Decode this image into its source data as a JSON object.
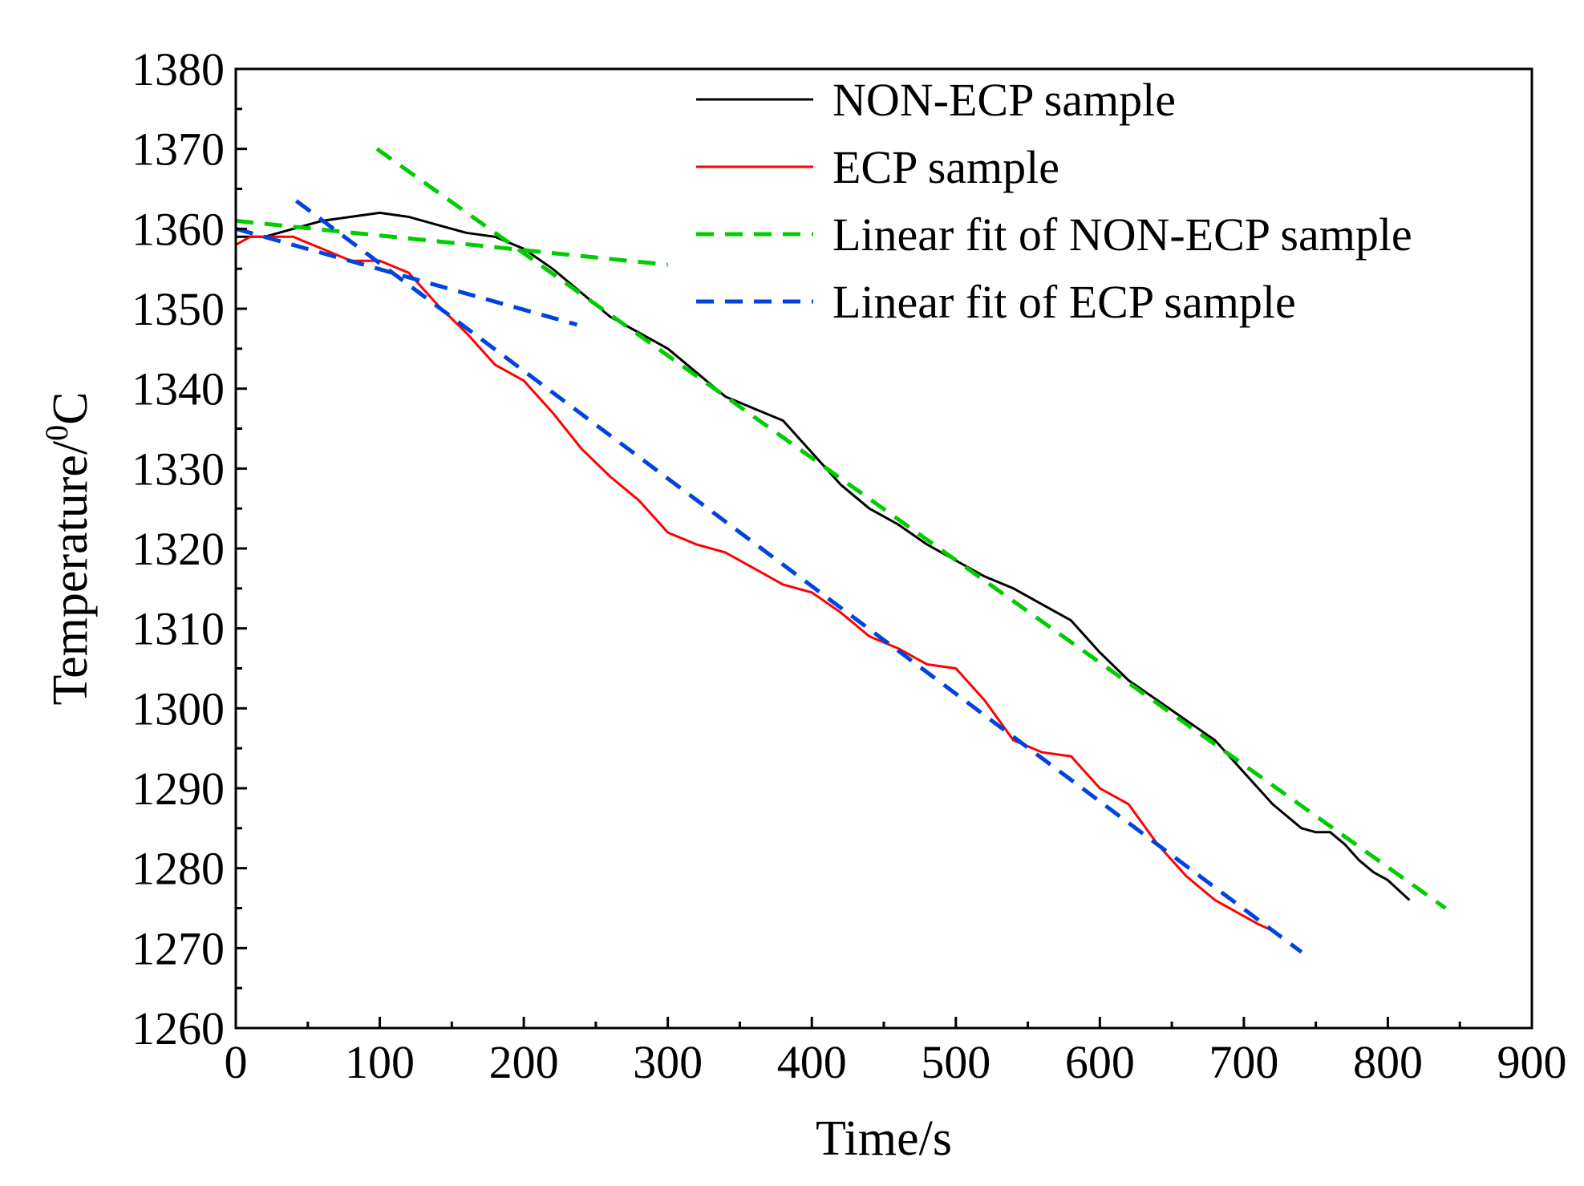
{
  "chart_data": {
    "type": "line",
    "title": "",
    "xlabel": "Time/s",
    "ylabel_main": "Temperature/",
    "ylabel_sup": "0",
    "ylabel_unit": "C",
    "xlim": [
      0,
      900
    ],
    "ylim": [
      1260,
      1380
    ],
    "xticks": [
      "0",
      "100",
      "200",
      "300",
      "400",
      "500",
      "600",
      "700",
      "800",
      "900"
    ],
    "yticks": [
      "1260",
      "1270",
      "1280",
      "1290",
      "1300",
      "1310",
      "1320",
      "1330",
      "1340",
      "1350",
      "1360",
      "1370",
      "1380"
    ],
    "grid": false,
    "legend_position": "top-right",
    "series": [
      {
        "name": "NON-ECP sample",
        "color": "#000000",
        "style": "solid",
        "x": [
          0,
          20,
          40,
          60,
          80,
          100,
          120,
          140,
          160,
          180,
          200,
          220,
          240,
          260,
          280,
          300,
          320,
          340,
          360,
          380,
          400,
          420,
          440,
          460,
          480,
          500,
          520,
          540,
          560,
          580,
          600,
          620,
          640,
          660,
          680,
          700,
          720,
          740,
          750,
          760,
          770,
          780,
          790,
          800,
          815
        ],
        "y": [
          1359,
          1359,
          1360,
          1361,
          1361.5,
          1362,
          1361.5,
          1360.5,
          1359.5,
          1359,
          1357.5,
          1355,
          1352,
          1349,
          1347,
          1345,
          1342,
          1339,
          1337.5,
          1336,
          1332,
          1328,
          1325,
          1323,
          1320.5,
          1318.5,
          1316.5,
          1315,
          1313,
          1311,
          1307,
          1303.5,
          1301,
          1298.5,
          1296,
          1292,
          1288,
          1285,
          1284.5,
          1284.5,
          1283,
          1281,
          1279.5,
          1278.5,
          1276
        ]
      },
      {
        "name": "ECP sample",
        "color": "#ff0000",
        "style": "solid",
        "x": [
          0,
          10,
          20,
          40,
          60,
          80,
          100,
          120,
          140,
          160,
          180,
          200,
          220,
          240,
          260,
          280,
          300,
          320,
          340,
          360,
          380,
          400,
          420,
          440,
          460,
          480,
          500,
          520,
          540,
          560,
          580,
          600,
          620,
          640,
          660,
          680,
          700,
          710,
          722
        ],
        "y": [
          1358,
          1359,
          1359,
          1359,
          1357.5,
          1356,
          1356,
          1354.5,
          1350.5,
          1347,
          1343,
          1341,
          1337,
          1332.5,
          1329,
          1326,
          1322,
          1320.5,
          1319.5,
          1317.5,
          1315.5,
          1314.5,
          1312,
          1309,
          1307.5,
          1305.5,
          1305,
          1301,
          1296,
          1294.5,
          1294,
          1290,
          1288,
          1283,
          1279,
          1276,
          1274,
          1273,
          1272
        ]
      },
      {
        "name": "Linear fit of NON-ECP sample",
        "color": "#00cc00",
        "style": "dashed",
        "segments": [
          {
            "x": [
              0,
              300
            ],
            "y": [
              1361,
              1355.5
            ]
          },
          {
            "x": [
              98,
              840
            ],
            "y": [
              1370,
              1275
            ]
          }
        ]
      },
      {
        "name": "Linear fit of ECP sample",
        "color": "#0044dd",
        "style": "dashed",
        "segments": [
          {
            "x": [
              0,
              237
            ],
            "y": [
              1360,
              1348
            ]
          },
          {
            "x": [
              42,
              740
            ],
            "y": [
              1363.5,
              1269.5
            ]
          }
        ]
      }
    ]
  }
}
